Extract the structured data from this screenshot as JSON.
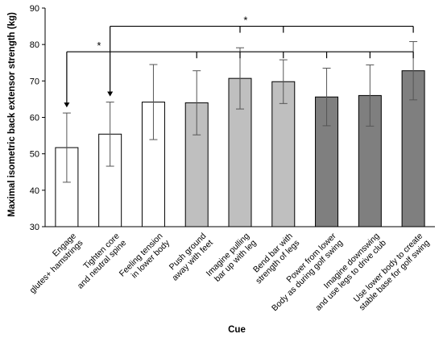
{
  "chart_data": {
    "type": "bar",
    "title": "",
    "xlabel": "Cue",
    "ylabel": "Maximal isometric back extensor strength  (kg)",
    "ylim": [
      30,
      90
    ],
    "yticks": [
      30,
      40,
      50,
      60,
      70,
      80,
      90
    ],
    "grid": false,
    "legend": "none",
    "categories": [
      [
        "Engage",
        "glutes+ hamstrings"
      ],
      [
        "Tighten core",
        "and neutral spine"
      ],
      [
        "Feeling tension",
        "in lower body"
      ],
      [
        "Push ground",
        "away with feet"
      ],
      [
        "Imagine pulling",
        "bar up with leg"
      ],
      [
        "Bend bar with",
        "strength of legs"
      ],
      [
        "Power from lower",
        "Body as during golf swing"
      ],
      [
        "Imagine downswing",
        "and use legs to drive club"
      ],
      [
        "Use lower body to create",
        "stable base for golf swing"
      ]
    ],
    "values": [
      51.7,
      55.4,
      64.2,
      64.0,
      70.7,
      69.8,
      65.6,
      66.0,
      72.8
    ],
    "errors": [
      9.5,
      8.8,
      10.3,
      8.8,
      8.4,
      6.0,
      7.9,
      8.4,
      8.0
    ],
    "bar_colors": [
      "#ffffff",
      "#ffffff",
      "#ffffff",
      "#bfbfbf",
      "#bfbfbf",
      "#bfbfbf",
      "#7f7f7f",
      "#7f7f7f",
      "#7f7f7f"
    ],
    "significance": [
      {
        "label": "*",
        "bracket_level": 78,
        "from": 0,
        "to": [
          3,
          4,
          5,
          6,
          7,
          8
        ]
      },
      {
        "label": "*",
        "bracket_level": 85,
        "from": 1,
        "to": [
          4,
          5,
          8
        ]
      }
    ]
  }
}
